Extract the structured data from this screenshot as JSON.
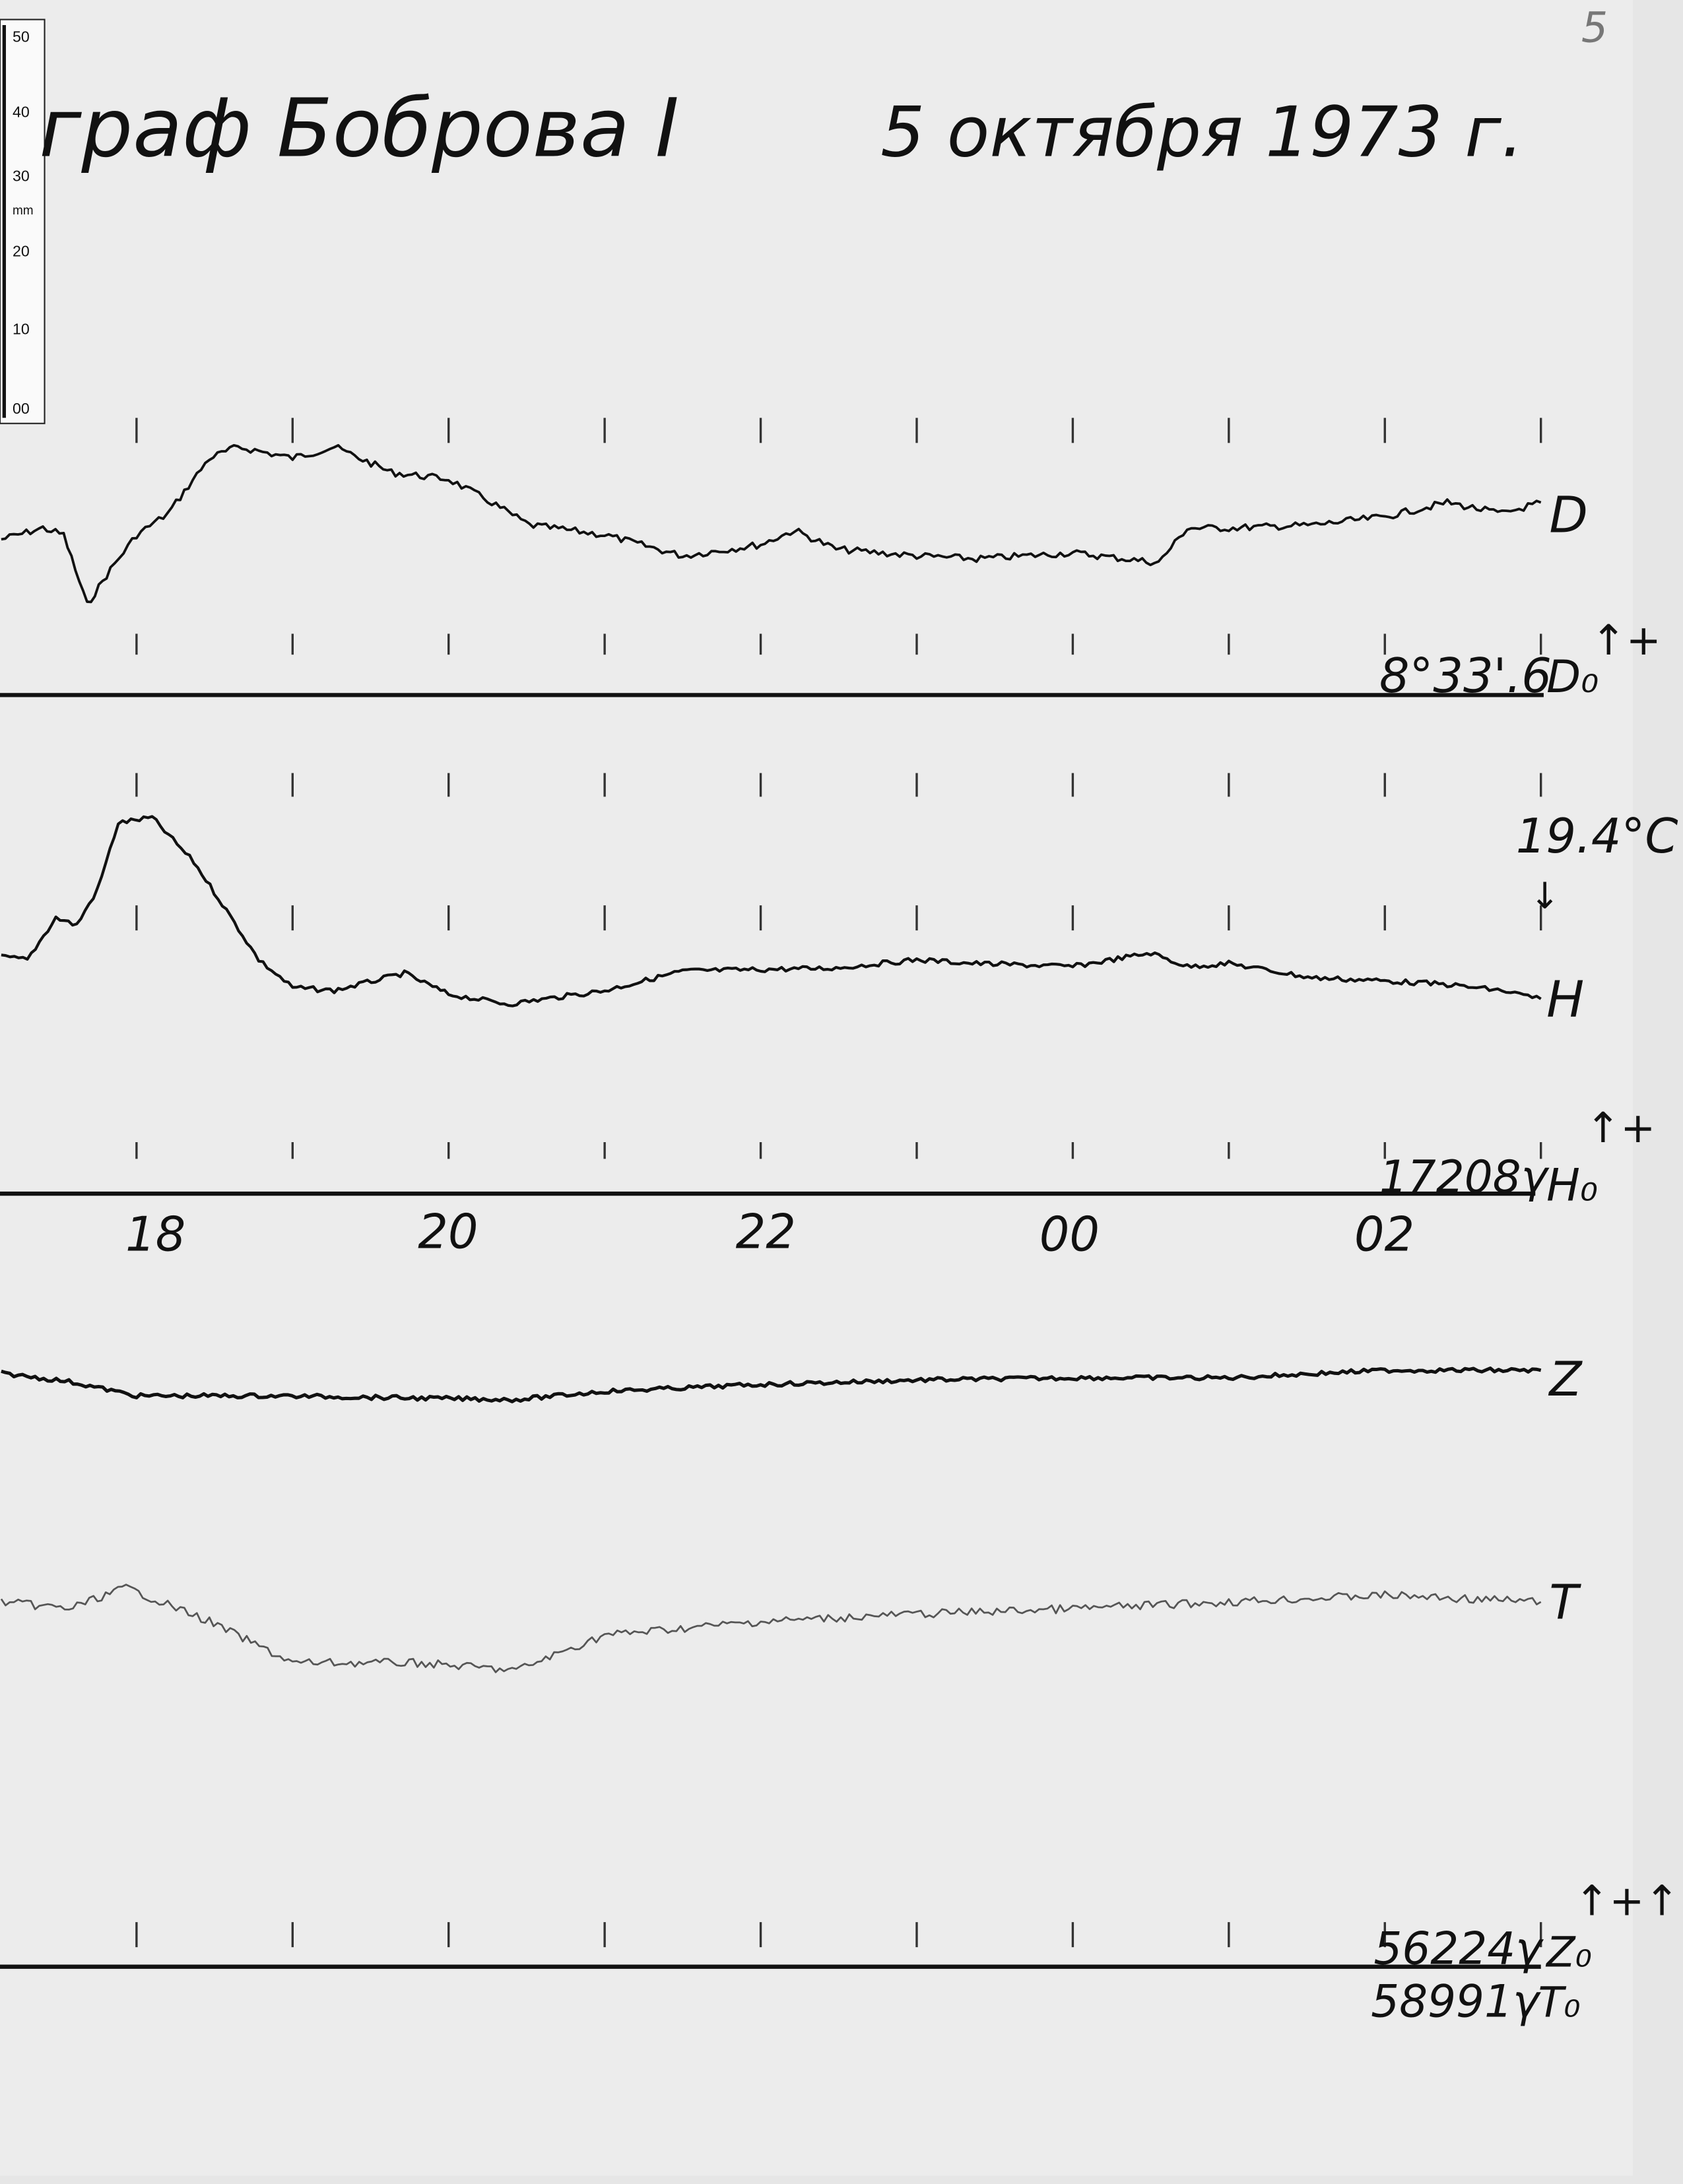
{
  "title": {
    "left": "граф  Боброва I",
    "right": "5 октября 1973 г."
  },
  "page_number": "5",
  "ruler": {
    "unit": "mm",
    "labels": [
      "50",
      "40",
      "30",
      "20",
      "10",
      "00"
    ]
  },
  "chart_data": {
    "type": "line",
    "title": "граф Боброва I — 5 октября 1973 г.",
    "x_tick_labels": [
      "18",
      "20",
      "22",
      "00",
      "02"
    ],
    "hour_marks": [
      "18:00",
      "19:00",
      "20:00",
      "21:00",
      "22:00",
      "23:00",
      "00:00",
      "01:00",
      "02:00",
      "03:00"
    ],
    "y_unit_note": "",
    "series": [
      {
        "name": "D",
        "baseline_label": "D₀",
        "baseline_value": "8°33'.6",
        "points": [
          [
            "17:08",
            20.7
          ],
          [
            "17:24",
            22.2
          ],
          [
            "17:32",
            21.3
          ],
          [
            "17:41",
            12.0
          ],
          [
            "17:50",
            16.7
          ],
          [
            "18:00",
            21.3
          ],
          [
            "18:12",
            24.1
          ],
          [
            "18:28",
            31.5
          ],
          [
            "18:39",
            33.0
          ],
          [
            "19:00",
            31.5
          ],
          [
            "19:16",
            33.0
          ],
          [
            "19:38",
            29.6
          ],
          [
            "20:00",
            28.7
          ],
          [
            "20:15",
            25.9
          ],
          [
            "20:31",
            22.6
          ],
          [
            "21:00",
            21.3
          ],
          [
            "21:30",
            18.5
          ],
          [
            "22:00",
            20.0
          ],
          [
            "22:13",
            21.9
          ],
          [
            "22:29",
            19.4
          ],
          [
            "23:00",
            18.5
          ],
          [
            "23:23",
            18.1
          ],
          [
            "00:00",
            18.9
          ],
          [
            "00:33",
            17.6
          ],
          [
            "00:44",
            22.2
          ],
          [
            "01:00",
            22.2
          ],
          [
            "01:32",
            22.6
          ],
          [
            "02:00",
            23.7
          ],
          [
            "02:24",
            25.6
          ],
          [
            "02:45",
            24.1
          ],
          [
            "03:00",
            25.6
          ]
        ]
      },
      {
        "name": "H",
        "baseline_label": "H₀",
        "baseline_value": "17208γ",
        "temperature": "19.4°C",
        "points": [
          [
            "17:08",
            31.5
          ],
          [
            "17:18",
            31.1
          ],
          [
            "17:29",
            36.7
          ],
          [
            "17:37",
            35.7
          ],
          [
            "17:45",
            40.4
          ],
          [
            "17:53",
            49.3
          ],
          [
            "18:06",
            50.0
          ],
          [
            "18:22",
            44.1
          ],
          [
            "18:33",
            38.5
          ],
          [
            "18:47",
            31.1
          ],
          [
            "19:00",
            27.4
          ],
          [
            "19:16",
            27.0
          ],
          [
            "19:43",
            29.3
          ],
          [
            "20:00",
            26.5
          ],
          [
            "20:23",
            25.2
          ],
          [
            "21:00",
            27.0
          ],
          [
            "21:30",
            29.6
          ],
          [
            "22:00",
            29.8
          ],
          [
            "22:29",
            30.0
          ],
          [
            "23:00",
            31.1
          ],
          [
            "23:23",
            30.6
          ],
          [
            "00:00",
            30.2
          ],
          [
            "00:30",
            32.0
          ],
          [
            "00:44",
            30.2
          ],
          [
            "01:00",
            30.6
          ],
          [
            "01:32",
            28.7
          ],
          [
            "02:00",
            28.3
          ],
          [
            "02:24",
            27.8
          ],
          [
            "02:45",
            27.0
          ],
          [
            "03:00",
            25.9
          ]
        ]
      },
      {
        "name": "Z",
        "baseline_label": "Z₀",
        "baseline_value": "56224γ",
        "points": [
          [
            "17:08",
            78.9
          ],
          [
            "17:34",
            77.8
          ],
          [
            "18:00",
            75.9
          ],
          [
            "18:55",
            75.9
          ],
          [
            "19:48",
            75.6
          ],
          [
            "20:26",
            75.4
          ],
          [
            "21:00",
            76.5
          ],
          [
            "22:00",
            77.4
          ],
          [
            "23:00",
            78.0
          ],
          [
            "00:00",
            78.3
          ],
          [
            "01:00",
            78.3
          ],
          [
            "02:00",
            79.3
          ],
          [
            "03:00",
            79.3
          ]
        ]
      },
      {
        "name": "T",
        "baseline_label": "T₀",
        "baseline_value": "58991γ",
        "points": [
          [
            "17:08",
            48.5
          ],
          [
            "17:34",
            47.6
          ],
          [
            "17:56",
            50.4
          ],
          [
            "18:28",
            45.9
          ],
          [
            "19:00",
            40.4
          ],
          [
            "19:48",
            40.4
          ],
          [
            "20:26",
            39.4
          ],
          [
            "21:00",
            44.1
          ],
          [
            "22:00",
            45.9
          ],
          [
            "23:00",
            46.9
          ],
          [
            "00:00",
            47.6
          ],
          [
            "01:00",
            48.5
          ],
          [
            "02:00",
            49.4
          ],
          [
            "03:00",
            48.5
          ]
        ]
      }
    ],
    "polarity_marks": {
      "D": "↑+",
      "H": "↑+",
      "ZT": "↑+↑+"
    },
    "colors": {
      "paper": "#ebebeb",
      "ink": "#111111",
      "T_trace": "#555555",
      "pencil": "#888888"
    }
  }
}
